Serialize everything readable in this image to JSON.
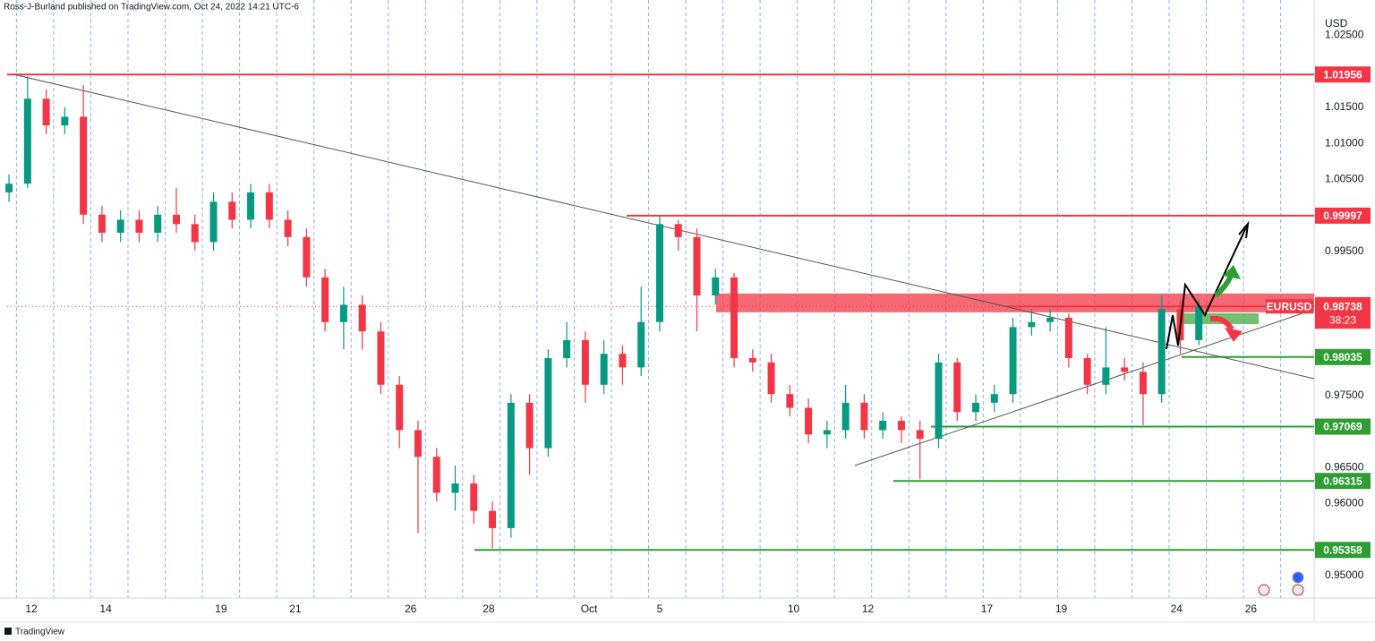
{
  "header": {
    "byline": "Ross-J-Burland published on TradingView.com, Oct 24, 2022 14:21 UTC-6",
    "footer": "TradingView"
  },
  "chart_data": {
    "type": "candlestick",
    "symbol": "EURUSD",
    "y_unit": "USD",
    "up_color": "#089981",
    "down_color": "#f23645",
    "x": [
      -0.6,
      -0.1,
      0.4,
      0.9,
      1.4,
      1.9,
      2.4,
      2.9,
      3.4,
      3.9,
      4.4,
      4.9,
      5.4,
      5.9,
      6.4,
      6.9,
      7.4,
      7.9,
      8.4,
      8.9,
      9.4,
      9.9,
      10.4,
      10.9,
      11.4,
      11.9,
      12.4,
      12.9,
      13.4,
      13.9,
      14.4,
      14.9,
      15.4,
      15.9,
      16.4,
      16.9,
      17.4,
      17.9,
      18.4,
      18.9,
      19.4,
      19.9,
      20.4,
      20.9,
      21.4,
      21.9,
      22.4,
      22.9,
      23.4,
      23.9,
      24.4,
      24.9,
      25.4,
      25.9,
      26.4,
      26.9,
      27.4,
      27.9,
      28.4,
      28.9,
      29.4,
      29.9,
      30.4,
      30.9,
      31.4
    ],
    "open": [
      1.0032,
      1.0044,
      1.0162,
      1.0125,
      1.0137,
      1.0001,
      0.9976,
      0.9994,
      0.9976,
      1.0001,
      0.9988,
      0.9963,
      1.0019,
      0.9994,
      1.0032,
      0.9994,
      0.997,
      0.9914,
      0.9852,
      0.9876,
      0.9839,
      0.9765,
      0.9702,
      0.9665,
      0.9615,
      0.9628,
      0.959,
      0.9566,
      0.974,
      0.9677,
      0.9802,
      0.9827,
      0.9765,
      0.9808,
      0.9789,
      0.9852,
      0.9988,
      0.997,
      0.9889,
      0.9914,
      0.9802,
      0.9796,
      0.9752,
      0.9733,
      0.9696,
      0.9702,
      0.974,
      0.9702,
      0.9715,
      0.9702,
      0.969,
      0.9796,
      0.9727,
      0.974,
      0.9752,
      0.9845,
      0.9852,
      0.9858,
      0.9802,
      0.9765,
      0.9789,
      0.9783,
      0.9752,
      0.987,
      0.9827
    ],
    "high": [
      1.0057,
      1.0193,
      1.0175,
      1.015,
      1.0181,
      1.0013,
      1.0007,
      1.0007,
      1.0013,
      1.0038,
      1.0001,
      1.0032,
      1.0032,
      1.0044,
      1.0044,
      1.0007,
      0.9982,
      0.9926,
      0.9901,
      0.9889,
      0.9852,
      0.9777,
      0.9715,
      0.9677,
      0.9653,
      0.964,
      0.9603,
      0.9752,
      0.9752,
      0.9814,
      0.9852,
      0.9839,
      0.9827,
      0.982,
      0.9901,
      1.0001,
      0.9994,
      0.9982,
      0.9926,
      0.992,
      0.9814,
      0.9808,
      0.9765,
      0.9746,
      0.9715,
      0.9765,
      0.9752,
      0.9727,
      0.9721,
      0.9715,
      0.9808,
      0.9802,
      0.9752,
      0.9765,
      0.9858,
      0.987,
      0.987,
      0.9864,
      0.9808,
      0.9845,
      0.9802,
      0.9796,
      0.9889,
      0.9883,
      0.9883
    ],
    "low": [
      1.0019,
      1.0038,
      1.0113,
      1.0113,
      0.9988,
      0.9963,
      0.9963,
      0.9963,
      0.9963,
      0.9976,
      0.9951,
      0.9951,
      0.9982,
      0.9982,
      0.9982,
      0.9957,
      0.9901,
      0.9839,
      0.9814,
      0.9814,
      0.9752,
      0.9677,
      0.9559,
      0.9603,
      0.959,
      0.9572,
      0.9538,
      0.9553,
      0.964,
      0.9665,
      0.9789,
      0.974,
      0.9752,
      0.9765,
      0.9777,
      0.9839,
      0.9951,
      0.9839,
      0.9876,
      0.9789,
      0.9783,
      0.974,
      0.9721,
      0.9684,
      0.9677,
      0.969,
      0.969,
      0.969,
      0.9684,
      0.9634,
      0.9677,
      0.9715,
      0.9715,
      0.9727,
      0.974,
      0.9833,
      0.9839,
      0.9789,
      0.9752,
      0.9752,
      0.9771,
      0.9709,
      0.974,
      0.9808,
      0.982
    ],
    "close": [
      1.0044,
      1.0162,
      1.0125,
      1.0137,
      1.0001,
      0.9976,
      0.9994,
      0.9976,
      1.0001,
      0.9988,
      0.9963,
      1.0019,
      0.9994,
      1.0032,
      0.9994,
      0.997,
      0.9914,
      0.9852,
      0.9876,
      0.9839,
      0.9765,
      0.9702,
      0.9665,
      0.9615,
      0.9628,
      0.959,
      0.9566,
      0.974,
      0.9677,
      0.9802,
      0.9827,
      0.9765,
      0.9808,
      0.9789,
      0.9852,
      0.9988,
      0.997,
      0.9889,
      0.9914,
      0.9802,
      0.9796,
      0.9752,
      0.9733,
      0.9696,
      0.9702,
      0.974,
      0.9702,
      0.9715,
      0.9702,
      0.969,
      0.9796,
      0.9727,
      0.974,
      0.9752,
      0.9845,
      0.9852,
      0.9858,
      0.9802,
      0.9765,
      0.9789,
      0.9783,
      0.9752,
      0.987,
      0.9827,
      0.9874
    ],
    "xlim": [
      -0.65,
      34.5
    ],
    "xticks": [
      {
        "value": 0,
        "label": "12"
      },
      {
        "value": 2,
        "label": "14"
      },
      {
        "value": 5.1,
        "label": "19"
      },
      {
        "value": 7.1,
        "label": "21"
      },
      {
        "value": 10.2,
        "label": "26"
      },
      {
        "value": 12.3,
        "label": "28"
      },
      {
        "value": 15,
        "label": "Oct"
      },
      {
        "value": 16.9,
        "label": "5"
      },
      {
        "value": 20.5,
        "label": "10"
      },
      {
        "value": 22.5,
        "label": "12"
      },
      {
        "value": 25.7,
        "label": "17"
      },
      {
        "value": 27.7,
        "label": "19"
      },
      {
        "value": 30.8,
        "label": "24"
      },
      {
        "value": 32.8,
        "label": "26"
      }
    ],
    "ylim": [
      0.9469,
      1.0299
    ],
    "yticks": [
      {
        "value": 1.025,
        "label": "1.02500"
      },
      {
        "value": 1.015,
        "label": "1.01500"
      },
      {
        "value": 1.01,
        "label": "1.01000"
      },
      {
        "value": 1.005,
        "label": "1.00500"
      },
      {
        "value": 0.995,
        "label": "0.99500"
      },
      {
        "value": 0.975,
        "label": "0.97500"
      },
      {
        "value": 0.965,
        "label": "0.96500"
      },
      {
        "value": 0.96,
        "label": "0.96000"
      },
      {
        "value": 0.95,
        "label": "0.95000"
      }
    ],
    "levels": [
      {
        "value": 1.01956,
        "color": "#f23645",
        "style": "line"
      },
      {
        "value": 0.99997,
        "color": "#f23645",
        "style": "line"
      },
      {
        "value": 0.98755,
        "color": "#f23645",
        "style": "band"
      },
      {
        "value": 0.98035,
        "color": "#2e9e34",
        "style": "line"
      },
      {
        "value": 0.97069,
        "color": "#2e9e34",
        "style": "line"
      },
      {
        "value": 0.96315,
        "color": "#2e9e34",
        "style": "line"
      },
      {
        "value": 0.95358,
        "color": "#2e9e34",
        "style": "line"
      }
    ],
    "current_price": {
      "value": 0.98738,
      "countdown": "38:23",
      "color": "#f23645"
    }
  }
}
